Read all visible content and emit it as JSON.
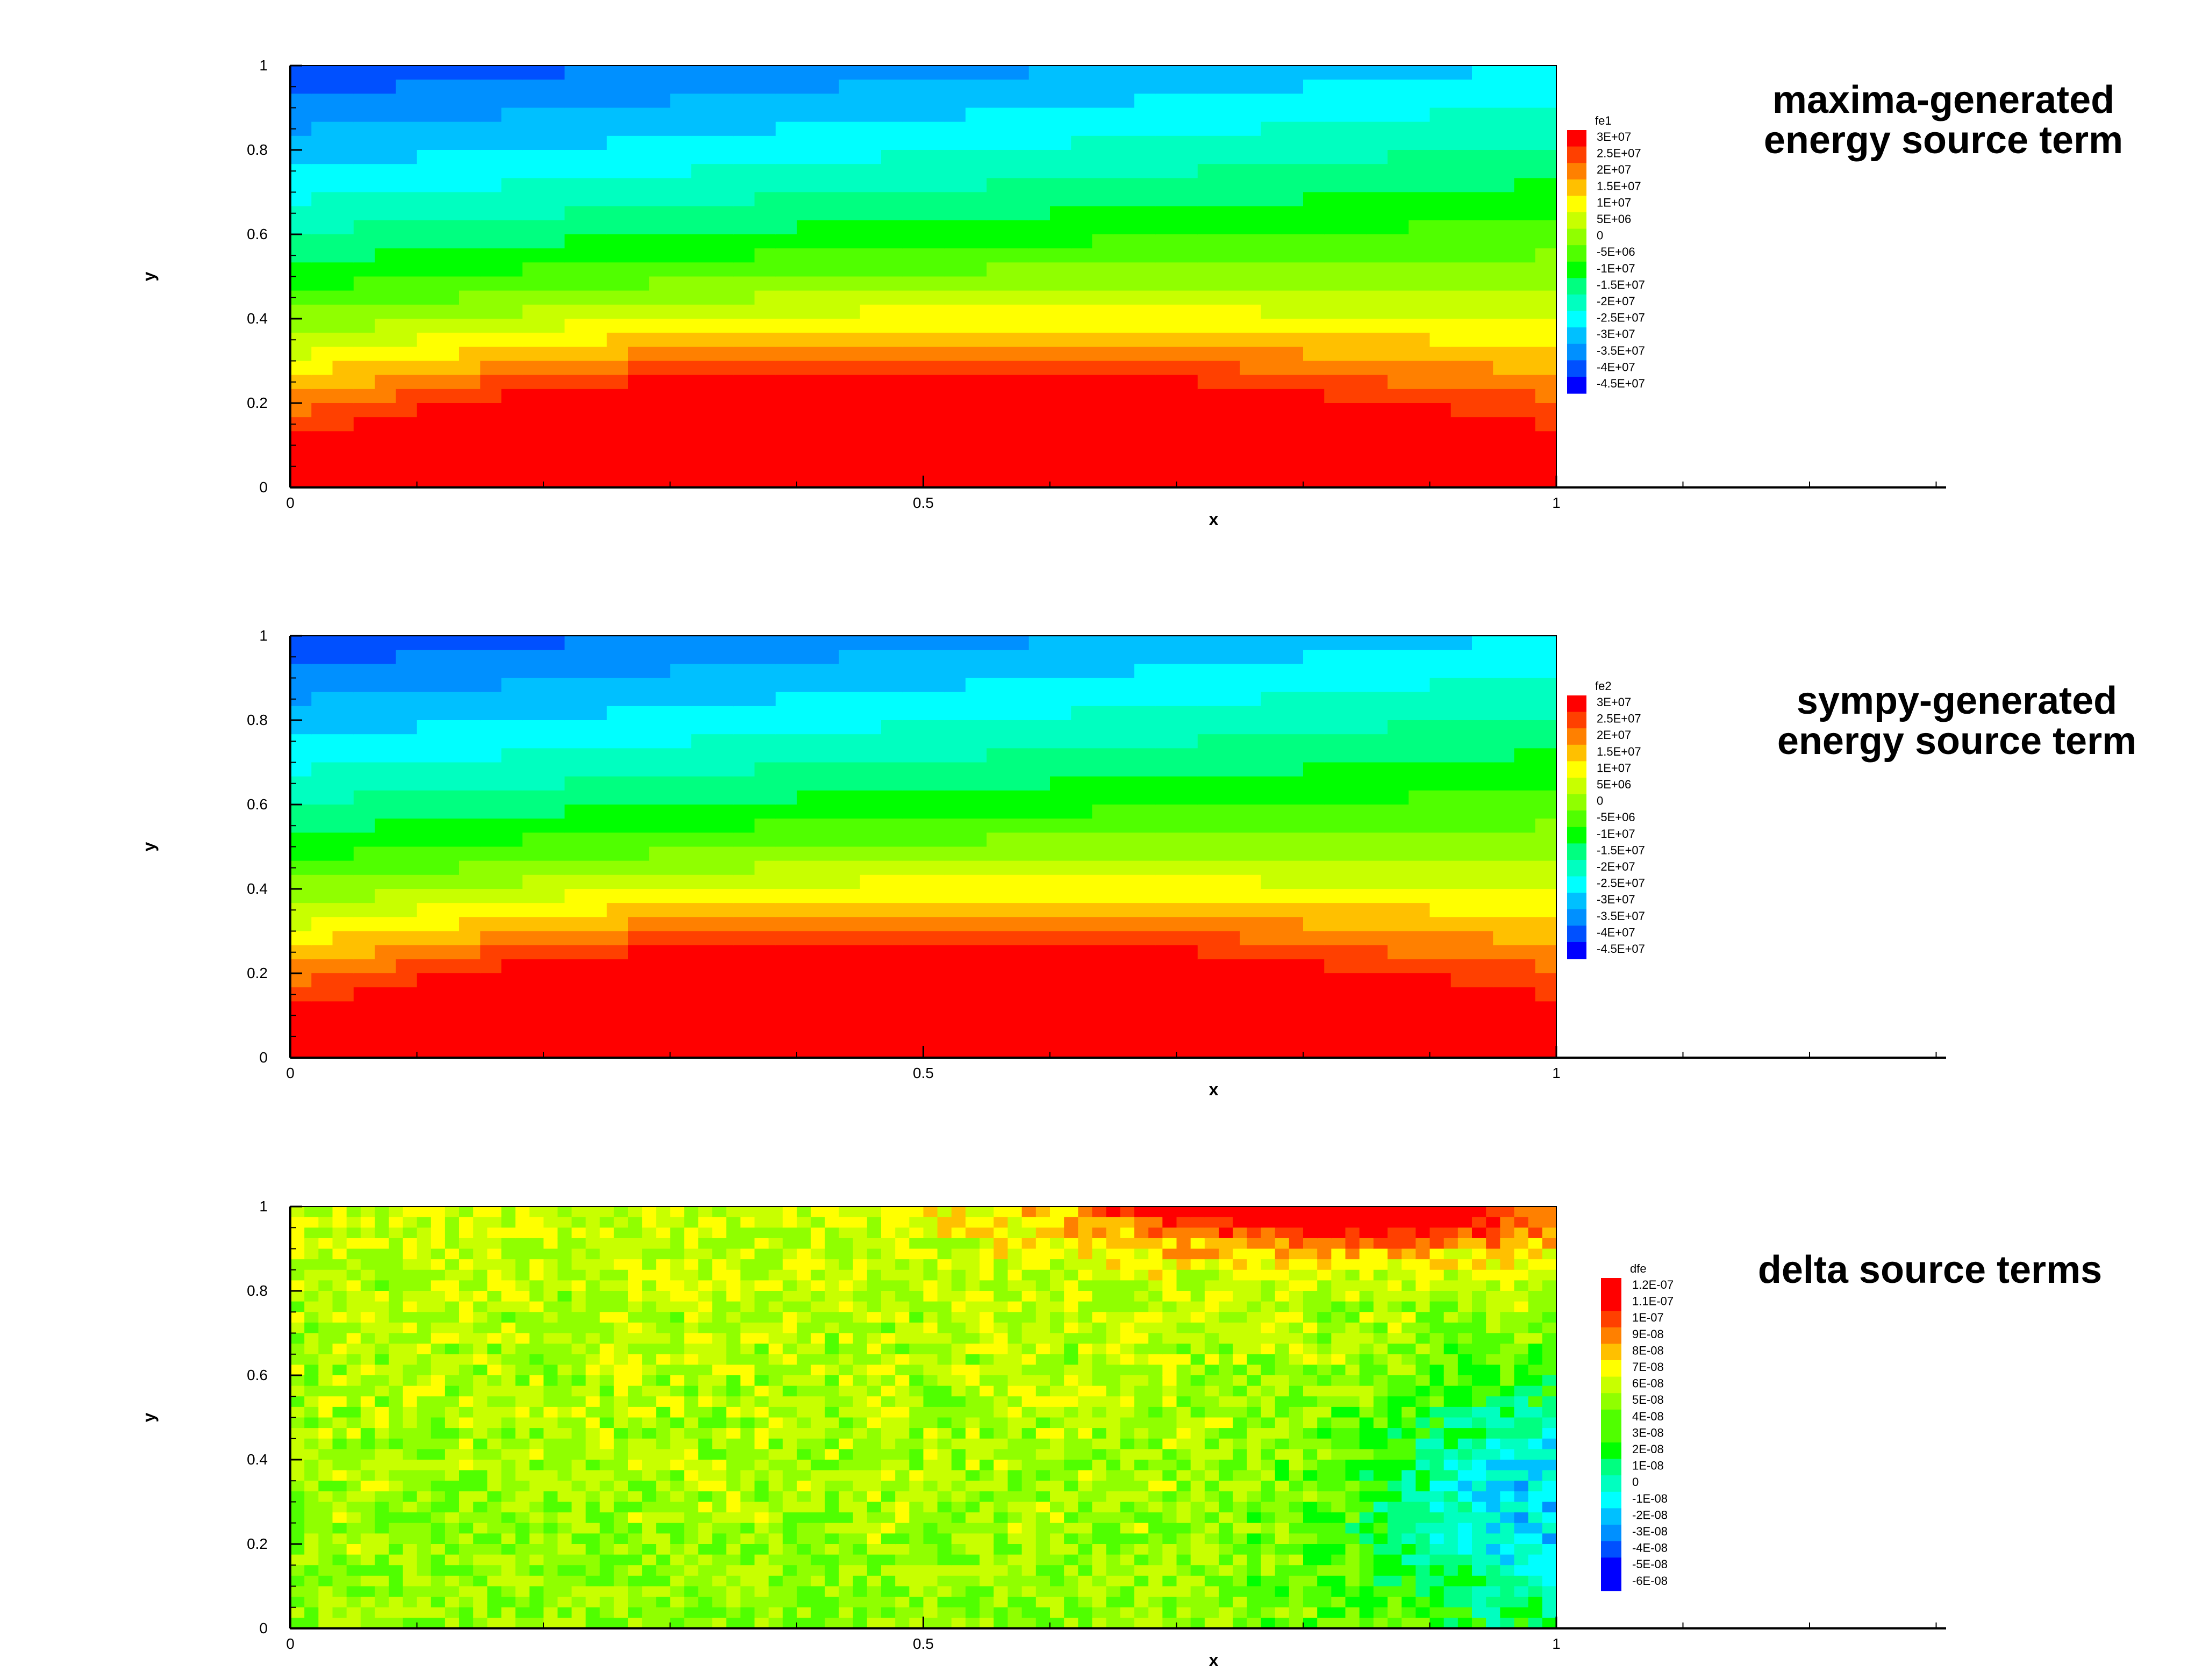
{
  "charts": [
    {
      "type": "heatmap",
      "subtype": "filled-contour",
      "annotation": [
        "maxima-generated",
        "energy source term"
      ],
      "variable": "fe1",
      "xlabel": "x",
      "ylabel": "y",
      "xlim": [
        0,
        1.3
      ],
      "ylim": [
        0,
        1
      ],
      "x_ticks": [
        "0",
        "0.5",
        "1"
      ],
      "y_ticks": [
        "0",
        "0.2",
        "0.4",
        "0.6",
        "0.8",
        "1"
      ],
      "legend_levels": [
        "3E+07",
        "2.5E+07",
        "2E+07",
        "1.5E+07",
        "1E+07",
        "5E+06",
        "0",
        "-5E+06",
        "-1E+07",
        "-1.5E+07",
        "-2E+07",
        "-2.5E+07",
        "-3E+07",
        "-3.5E+07",
        "-4E+07",
        "-4.5E+07"
      ],
      "level_min": -45000000,
      "level_max": 30000000,
      "field": "smooth"
    },
    {
      "type": "heatmap",
      "subtype": "filled-contour",
      "annotation": [
        "sympy-generated",
        "energy source term"
      ],
      "variable": "fe2",
      "xlabel": "x",
      "ylabel": "y",
      "xlim": [
        0,
        1.3
      ],
      "ylim": [
        0,
        1
      ],
      "x_ticks": [
        "0",
        "0.5",
        "1"
      ],
      "y_ticks": [
        "0",
        "0.2",
        "0.4",
        "0.6",
        "0.8",
        "1"
      ],
      "legend_levels": [
        "3E+07",
        "2.5E+07",
        "2E+07",
        "1.5E+07",
        "1E+07",
        "5E+06",
        "0",
        "-5E+06",
        "-1E+07",
        "-1.5E+07",
        "-2E+07",
        "-2.5E+07",
        "-3E+07",
        "-3.5E+07",
        "-4E+07",
        "-4.5E+07"
      ],
      "level_min": -45000000,
      "level_max": 30000000,
      "field": "smooth"
    },
    {
      "type": "heatmap",
      "subtype": "filled-contour",
      "annotation": [
        "delta source terms"
      ],
      "variable": "dfe",
      "xlabel": "x",
      "ylabel": "y",
      "xlim": [
        0,
        1.3
      ],
      "ylim": [
        0,
        1
      ],
      "x_ticks": [
        "0",
        "0.5",
        "1"
      ],
      "y_ticks": [
        "0",
        "0.2",
        "0.4",
        "0.6",
        "0.8",
        "1"
      ],
      "legend_levels": [
        "1.2E-07",
        "1.1E-07",
        "1E-07",
        "9E-08",
        "8E-08",
        "7E-08",
        "6E-08",
        "5E-08",
        "4E-08",
        "3E-08",
        "2E-08",
        "1E-08",
        "0",
        "-1E-08",
        "-2E-08",
        "-3E-08",
        "-4E-08",
        "-5E-08",
        "-6E-08"
      ],
      "level_min": -6e-08,
      "level_max": 1.2e-07,
      "field": "noise"
    }
  ],
  "colors": {
    "palette": [
      "#0000ff",
      "#0050ff",
      "#0090ff",
      "#00c0ff",
      "#00ffff",
      "#00ffc0",
      "#00ff80",
      "#00ff00",
      "#50ff00",
      "#90ff00",
      "#c8ff00",
      "#ffff00",
      "#ffc000",
      "#ff8000",
      "#ff4000",
      "#ff0000"
    ],
    "axis": "#000000",
    "background": "#ffffff"
  }
}
